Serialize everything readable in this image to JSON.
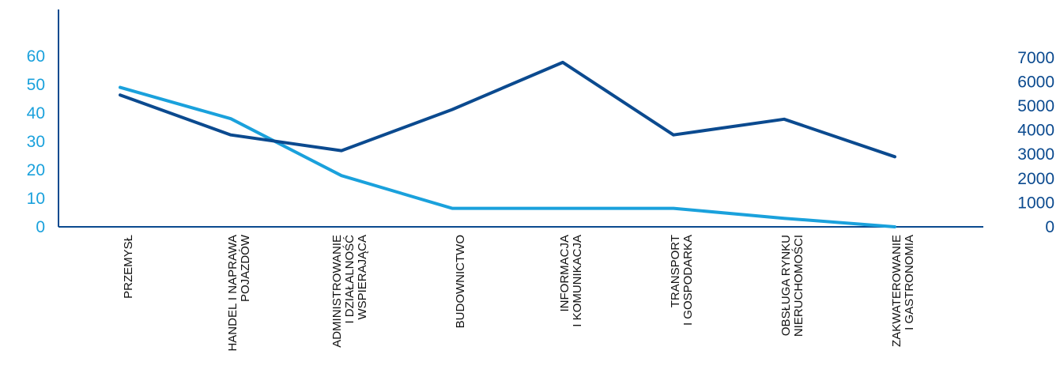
{
  "colors": {
    "axis": "#0b4a8f",
    "left_axis_text": "#1aa1dc",
    "right_axis_text": "#0b4a8f",
    "category_text": "#111111"
  },
  "chart_data": {
    "type": "line",
    "categories": [
      "PRZEMYSŁ",
      "HANDEL I NAPRAWA POJAZDÓW",
      "ADMINISTROWANIE I DZIAŁALNOŚĆ WSPIERAJĄCA",
      "BUDOWNICTWO",
      "INFORMACJA I KOMUNIKACJA",
      "TRANSPORT I GOSPODARKA",
      "OBSŁUGA RYNKU NIERUCHOMOŚCI",
      "ZAKWATEROWANIE I GASTRONOMIA"
    ],
    "category_label_lines": [
      [
        "PRZEMYSŁ"
      ],
      [
        "HANDEL I NAPRAWA",
        "POJAZDÓW"
      ],
      [
        "ADMINISTROWANIE",
        "I DZIAŁALNOŚĆ",
        "WSPIERAJĄCA"
      ],
      [
        "BUDOWNICTWO"
      ],
      [
        "INFORMACJA",
        "I KOMUNIKACJA"
      ],
      [
        "TRANSPORT",
        "I GOSPODARKA"
      ],
      [
        "OBSŁUGA RYNKU",
        "NIERUCHOMOŚCI"
      ],
      [
        "ZAKWATEROWANIE",
        "I GASTRONOMIA"
      ]
    ],
    "series": [
      {
        "axis": "left",
        "color": "#1aa1dc",
        "values": [
          49,
          38,
          18,
          6.5,
          6.5,
          6.5,
          3,
          0
        ]
      },
      {
        "axis": "right",
        "color": "#0b4a8f",
        "values": [
          5450,
          3800,
          3150,
          4850,
          6800,
          3800,
          4450,
          2900
        ]
      }
    ],
    "y_left": {
      "ticks": [
        0,
        10,
        20,
        30,
        40,
        50,
        60
      ],
      "range": [
        0,
        65
      ]
    },
    "y_right": {
      "ticks": [
        0,
        1000,
        2000,
        3000,
        4000,
        5000,
        6000,
        7000
      ],
      "range": [
        0,
        7700
      ]
    },
    "grid": false,
    "legend": "none"
  }
}
